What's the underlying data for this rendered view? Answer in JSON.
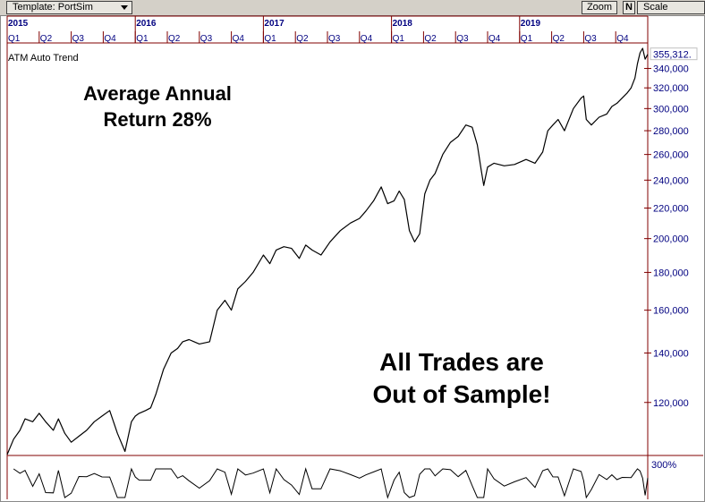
{
  "toolbar": {
    "template_label": "Template: PortSim",
    "zoom_label": "Zoom",
    "n_label": "N",
    "scale_label": "Scale"
  },
  "chart_data": {
    "type": "line",
    "title": "ATM Auto Trend",
    "years": [
      "2015",
      "2016",
      "2017",
      "2018",
      "2019"
    ],
    "quarters": [
      "Q1",
      "Q2",
      "Q3",
      "Q4",
      "Q1",
      "Q2",
      "Q3",
      "Q4",
      "Q1",
      "Q2",
      "Q3",
      "Q4",
      "Q1",
      "Q2",
      "Q3",
      "Q4",
      "Q1",
      "Q2",
      "Q3",
      "Q4"
    ],
    "yscale": "log",
    "ylim": [
      102000,
      362000
    ],
    "yticks": [
      120000,
      140000,
      160000,
      180000,
      200000,
      220000,
      240000,
      260000,
      280000,
      300000,
      320000,
      340000
    ],
    "ytick_labels": [
      "120,000",
      "140,000",
      "160,000",
      "180,000",
      "200,000",
      "220,000",
      "240,000",
      "260,000",
      "280,000",
      "300,000",
      "320,000",
      "340,000"
    ],
    "last_value_label": "355,312.",
    "x_start": 2015.0,
    "x_end": 2020.0,
    "series": [
      {
        "color": "#000000",
        "x": [
          2015.0,
          2015.05,
          2015.1,
          2015.14,
          2015.2,
          2015.25,
          2015.3,
          2015.36,
          2015.4,
          2015.45,
          2015.5,
          2015.56,
          2015.62,
          2015.68,
          2015.74,
          2015.8,
          2015.86,
          2015.92,
          2015.97,
          2016.0,
          2016.03,
          2016.08,
          2016.12,
          2016.16,
          2016.22,
          2016.28,
          2016.33,
          2016.37,
          2016.42,
          2016.5,
          2016.58,
          2016.64,
          2016.7,
          2016.75,
          2016.8,
          2016.86,
          2016.92,
          2017.0,
          2017.05,
          2017.1,
          2017.16,
          2017.22,
          2017.28,
          2017.33,
          2017.38,
          2017.45,
          2017.52,
          2017.6,
          2017.68,
          2017.75,
          2017.8,
          2017.86,
          2017.92,
          2017.97,
          2018.02,
          2018.06,
          2018.1,
          2018.14,
          2018.18,
          2018.22,
          2018.26,
          2018.3,
          2018.34,
          2018.4,
          2018.46,
          2018.52,
          2018.58,
          2018.63,
          2018.67,
          2018.7,
          2018.72,
          2018.75,
          2018.8,
          2018.88,
          2018.96,
          2019.05,
          2019.12,
          2019.18,
          2019.22,
          2019.26,
          2019.3,
          2019.35,
          2019.42,
          2019.48,
          2019.5,
          2019.52,
          2019.56,
          2019.62,
          2019.68,
          2019.72,
          2019.76,
          2019.8,
          2019.84,
          2019.87,
          2019.9,
          2019.92,
          2019.94,
          2019.96,
          2019.98,
          2020.0
        ],
        "values": [
          102000,
          107000,
          110000,
          114000,
          113000,
          116000,
          113000,
          110000,
          114000,
          109000,
          106000,
          108000,
          110000,
          113000,
          115000,
          117000,
          109000,
          103000,
          113000,
          115000,
          116000,
          117000,
          118000,
          123000,
          133000,
          140000,
          142000,
          145000,
          146000,
          144000,
          145000,
          160000,
          165000,
          160000,
          171000,
          175000,
          180000,
          190000,
          185000,
          193000,
          195000,
          194000,
          188000,
          196000,
          193000,
          190000,
          198000,
          205000,
          210000,
          213000,
          218000,
          225000,
          235000,
          223000,
          225000,
          232000,
          226000,
          205000,
          198000,
          203000,
          230000,
          240000,
          245000,
          260000,
          270000,
          275000,
          285000,
          283000,
          268000,
          248000,
          236000,
          250000,
          253000,
          251000,
          252000,
          256000,
          253000,
          262000,
          280000,
          285000,
          290000,
          280000,
          300000,
          310000,
          312000,
          290000,
          285000,
          292000,
          295000,
          302000,
          305000,
          310000,
          315000,
          320000,
          330000,
          345000,
          357000,
          362000,
          350000,
          355312
        ]
      }
    ],
    "sub_panel": {
      "label": "300%"
    }
  },
  "annotations": {
    "return_line1": "Average Annual",
    "return_line2": "Return 28%",
    "sample_line1": "All Trades are",
    "sample_line2": "Out of Sample!"
  }
}
